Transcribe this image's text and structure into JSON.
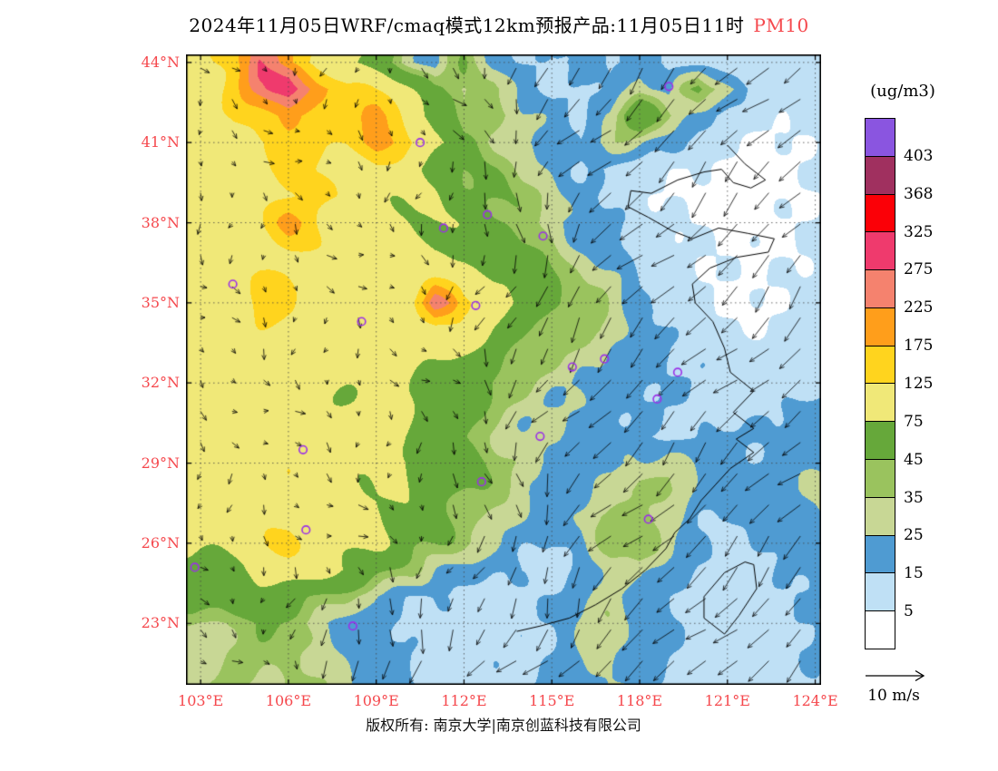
{
  "title": {
    "main": "2024年11月05日WRF/cmaq模式12km预报产品:11月05日11时",
    "pollutant": "PM10",
    "pollutant_color": "#f5484d"
  },
  "axes": {
    "label_color": "#f5484d",
    "lat_ticks": [
      44,
      41,
      38,
      35,
      32,
      29,
      26,
      23
    ],
    "lat_labels": [
      "44°N",
      "41°N",
      "38°N",
      "35°N",
      "32°N",
      "29°N",
      "26°N",
      "23°N"
    ],
    "lon_ticks": [
      103,
      106,
      109,
      112,
      115,
      118,
      121,
      124
    ],
    "lon_labels": [
      "103°E",
      "106°E",
      "109°E",
      "112°E",
      "115°E",
      "118°E",
      "121°E",
      "124°E"
    ]
  },
  "colorbar": {
    "unit": "(ug/m3)",
    "labels": [
      403,
      368,
      325,
      275,
      225,
      175,
      125,
      75,
      45,
      35,
      25,
      15,
      5
    ]
  },
  "wind_ref": {
    "label": "10 m/s"
  },
  "footer": {
    "copyright": "版权所有: 南京大学|南京创蓝科技有限公司"
  },
  "chart_data": {
    "type": "heatmap",
    "subtype": "filled-contour-map-with-wind-vectors",
    "variable": "PM10",
    "unit": "ug/m3",
    "valid_time": "2024-11-05 11时",
    "model": "WRF/cmaq 12km",
    "lon_range": [
      102.5,
      124.2
    ],
    "lat_range": [
      20.7,
      44.3
    ],
    "levels": [
      5,
      15,
      25,
      35,
      45,
      75,
      125,
      175,
      225,
      275,
      325,
      368,
      403
    ],
    "palette": [
      "#ffffff",
      "#bfe0f5",
      "#4f9bd2",
      "#c8d795",
      "#9ac35e",
      "#66a83a",
      "#f0e878",
      "#ffd41e",
      "#ff9e1b",
      "#f5826e",
      "#ef3a6d",
      "#fb0007",
      "#a0305f",
      "#8a55e0"
    ],
    "grid": {
      "lon_start": 103,
      "lon_step": 1,
      "lat_start": 44,
      "lat_step": -1,
      "values": [
        [
          100,
          140,
          260,
          160,
          110,
          90,
          60,
          38,
          20,
          50,
          18,
          15,
          12,
          20,
          10,
          22,
          12,
          8,
          10,
          6,
          8,
          10
        ],
        [
          95,
          125,
          210,
          340,
          240,
          150,
          110,
          85,
          45,
          28,
          45,
          22,
          12,
          10,
          18,
          28,
          18,
          60,
          30,
          10,
          8,
          10
        ],
        [
          90,
          110,
          150,
          185,
          150,
          135,
          175,
          120,
          60,
          38,
          50,
          30,
          18,
          12,
          25,
          60,
          40,
          20,
          12,
          8,
          6,
          8
        ],
        [
          85,
          100,
          118,
          130,
          120,
          145,
          205,
          160,
          100,
          50,
          35,
          25,
          20,
          15,
          30,
          25,
          18,
          10,
          6,
          4,
          4,
          6
        ],
        [
          85,
          95,
          110,
          145,
          110,
          100,
          130,
          100,
          70,
          48,
          40,
          30,
          25,
          18,
          12,
          8,
          6,
          4,
          3,
          3,
          4,
          5
        ],
        [
          80,
          90,
          100,
          120,
          150,
          110,
          100,
          90,
          80,
          55,
          45,
          35,
          30,
          20,
          12,
          8,
          5,
          3,
          3,
          3,
          4,
          5
        ],
        [
          85,
          95,
          105,
          180,
          120,
          100,
          95,
          90,
          85,
          70,
          50,
          40,
          30,
          20,
          15,
          10,
          6,
          4,
          3,
          3,
          4,
          6
        ],
        [
          90,
          100,
          110,
          120,
          110,
          100,
          95,
          90,
          85,
          80,
          60,
          45,
          40,
          30,
          20,
          12,
          8,
          5,
          4,
          4,
          5,
          6
        ],
        [
          95,
          110,
          130,
          120,
          110,
          105,
          100,
          95,
          120,
          100,
          80,
          60,
          45,
          35,
          25,
          15,
          10,
          6,
          5,
          5,
          6,
          8
        ],
        [
          100,
          115,
          120,
          110,
          105,
          100,
          95,
          95,
          300,
          130,
          90,
          70,
          50,
          40,
          28,
          16,
          8,
          5,
          4,
          4,
          5,
          8
        ],
        [
          105,
          110,
          110,
          105,
          100,
          100,
          95,
          90,
          100,
          90,
          70,
          55,
          45,
          40,
          30,
          20,
          12,
          8,
          6,
          5,
          6,
          8
        ],
        [
          100,
          105,
          105,
          100,
          95,
          95,
          90,
          85,
          80,
          70,
          55,
          45,
          38,
          30,
          25,
          20,
          15,
          12,
          10,
          8,
          8,
          10
        ],
        [
          95,
          100,
          100,
          95,
          95,
          90,
          90,
          85,
          75,
          60,
          45,
          40,
          30,
          25,
          20,
          18,
          15,
          12,
          10,
          10,
          10,
          12
        ],
        [
          95,
          100,
          95,
          95,
          90,
          90,
          85,
          80,
          65,
          50,
          40,
          35,
          28,
          22,
          18,
          15,
          12,
          12,
          12,
          12,
          14,
          15
        ],
        [
          100,
          105,
          100,
          95,
          95,
          90,
          85,
          75,
          55,
          45,
          38,
          30,
          25,
          20,
          16,
          14,
          12,
          14,
          16,
          18,
          18,
          20
        ],
        [
          95,
          100,
          110,
          105,
          100,
          95,
          90,
          80,
          60,
          50,
          40,
          32,
          25,
          20,
          18,
          25,
          30,
          20,
          18,
          20,
          22,
          22
        ],
        [
          90,
          100,
          105,
          110,
          105,
          100,
          90,
          75,
          55,
          45,
          35,
          28,
          22,
          20,
          30,
          45,
          35,
          20,
          18,
          20,
          22,
          24
        ],
        [
          85,
          95,
          105,
          115,
          110,
          100,
          90,
          70,
          50,
          40,
          30,
          22,
          18,
          25,
          40,
          50,
          30,
          18,
          16,
          18,
          20,
          22
        ],
        [
          80,
          90,
          100,
          130,
          110,
          95,
          85,
          60,
          45,
          35,
          25,
          18,
          15,
          20,
          35,
          45,
          25,
          16,
          14,
          16,
          18,
          20
        ],
        [
          70,
          80,
          90,
          95,
          90,
          80,
          60,
          40,
          28,
          20,
          15,
          12,
          12,
          18,
          30,
          35,
          20,
          14,
          12,
          14,
          16,
          18
        ],
        [
          50,
          55,
          60,
          55,
          50,
          40,
          28,
          18,
          14,
          12,
          10,
          12,
          14,
          20,
          28,
          22,
          16,
          12,
          10,
          12,
          14,
          16
        ],
        [
          35,
          40,
          40,
          38,
          32,
          25,
          18,
          14,
          12,
          10,
          12,
          14,
          18,
          25,
          30,
          20,
          14,
          10,
          10,
          12,
          12,
          14
        ]
      ]
    },
    "city_markers": [
      [
        119.0,
        43.1
      ],
      [
        110.5,
        41.0
      ],
      [
        104.1,
        35.7
      ],
      [
        111.3,
        37.8
      ],
      [
        112.8,
        38.3
      ],
      [
        114.7,
        37.5
      ],
      [
        108.5,
        34.3
      ],
      [
        112.4,
        34.9
      ],
      [
        115.7,
        32.6
      ],
      [
        116.8,
        32.9
      ],
      [
        119.3,
        32.4
      ],
      [
        118.6,
        31.4
      ],
      [
        106.5,
        29.5
      ],
      [
        112.6,
        28.3
      ],
      [
        114.6,
        30.0
      ],
      [
        106.6,
        26.5
      ],
      [
        118.3,
        26.9
      ],
      [
        108.2,
        22.9
      ],
      [
        102.8,
        25.1
      ]
    ],
    "coastline": [
      [
        121.0,
        40.9
      ],
      [
        121.6,
        40.2
      ],
      [
        122.3,
        39.6
      ],
      [
        121.8,
        39.3
      ],
      [
        121.2,
        39.5
      ],
      [
        120.8,
        40.0
      ],
      [
        120.2,
        39.9
      ],
      [
        119.3,
        39.6
      ],
      [
        118.4,
        39.1
      ],
      [
        117.7,
        39.2
      ],
      [
        117.6,
        38.6
      ],
      [
        118.3,
        38.2
      ],
      [
        119.1,
        37.7
      ],
      [
        119.8,
        37.4
      ],
      [
        120.7,
        37.8
      ],
      [
        121.7,
        37.6
      ],
      [
        122.6,
        37.4
      ],
      [
        122.4,
        36.9
      ],
      [
        121.3,
        36.7
      ],
      [
        120.4,
        36.3
      ],
      [
        119.8,
        35.7
      ],
      [
        119.9,
        35.0
      ],
      [
        120.5,
        34.3
      ],
      [
        120.9,
        33.3
      ],
      [
        121.1,
        32.4
      ],
      [
        121.9,
        31.7
      ],
      [
        121.2,
        30.9
      ],
      [
        121.9,
        30.3
      ],
      [
        121.3,
        29.9
      ],
      [
        121.9,
        29.4
      ],
      [
        121.1,
        28.8
      ],
      [
        120.6,
        28.2
      ],
      [
        120.1,
        27.6
      ],
      [
        119.7,
        26.9
      ],
      [
        119.2,
        26.4
      ],
      [
        118.9,
        25.8
      ],
      [
        118.2,
        25.0
      ],
      [
        117.4,
        24.3
      ],
      [
        116.5,
        23.7
      ],
      [
        115.6,
        23.2
      ],
      [
        114.6,
        22.9
      ],
      [
        113.8,
        22.7
      ]
    ],
    "taiwan": [
      [
        121.9,
        25.2
      ],
      [
        122.0,
        24.3
      ],
      [
        121.4,
        23.3
      ],
      [
        120.9,
        22.6
      ],
      [
        120.2,
        23.2
      ],
      [
        120.2,
        24.0
      ],
      [
        120.9,
        24.9
      ],
      [
        121.6,
        25.3
      ],
      [
        121.9,
        25.2
      ]
    ],
    "wind": {
      "reference_label": "10 m/s",
      "reference_speed_mps": 10
    }
  }
}
